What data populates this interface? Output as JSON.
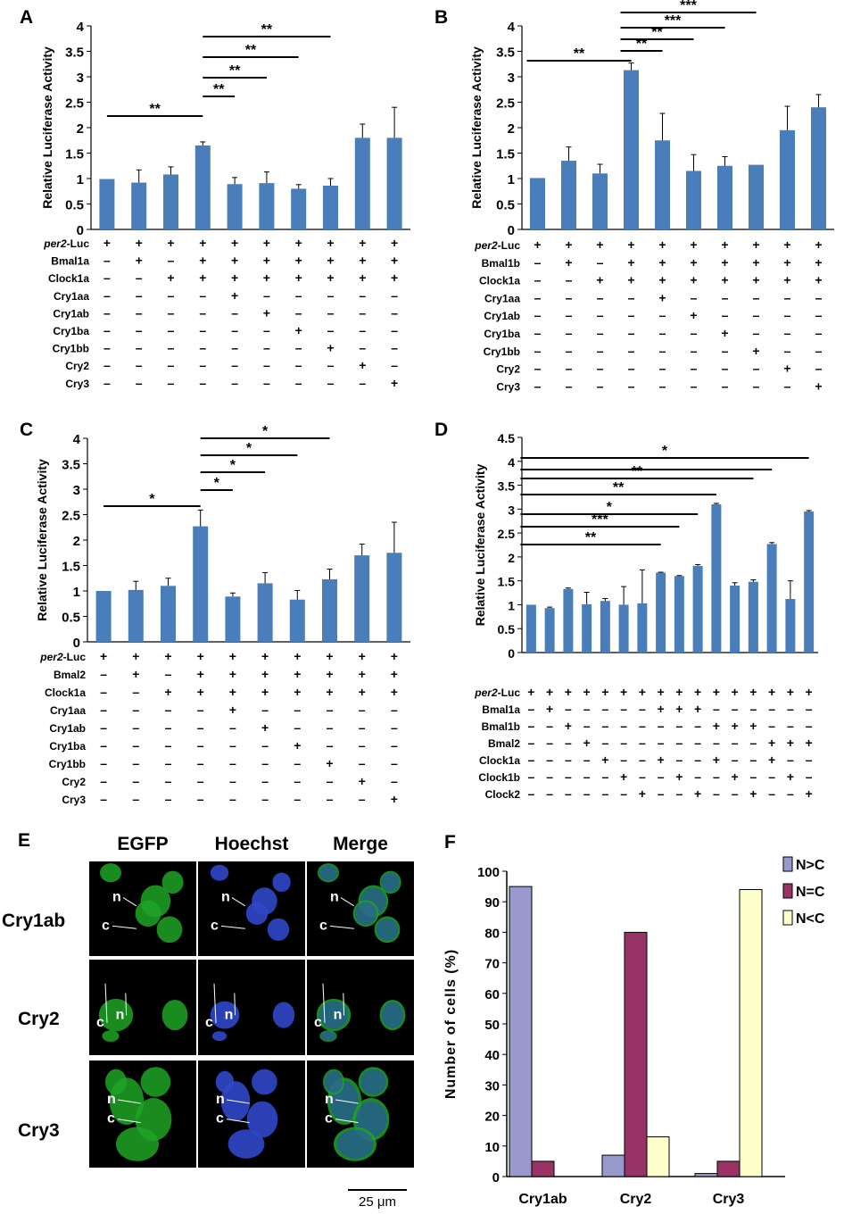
{
  "colors": {
    "bar": "#4a7ebb",
    "n_gt_c": "#9999cc",
    "n_eq_c": "#993366",
    "n_lt_c": "#ffffcc",
    "egfp": "#1fa324",
    "hoechst": "#2f47c8"
  },
  "chart_data": [
    {
      "id": "A",
      "type": "bar",
      "panel_label": "A",
      "ylabel": "Relative  Luciferase Activity",
      "ylim": [
        0,
        4
      ],
      "yticks": [
        "0",
        "0.5",
        "1",
        "1.5",
        "2",
        "2.5",
        "3",
        "3.5",
        "4"
      ],
      "values": [
        0.99,
        0.92,
        1.08,
        1.65,
        0.89,
        0.91,
        0.8,
        0.86,
        1.8,
        1.8
      ],
      "errors": [
        0.0,
        0.25,
        0.15,
        0.07,
        0.13,
        0.22,
        0.08,
        0.14,
        0.27,
        0.6
      ],
      "significance": [
        {
          "from": 0,
          "to": 3,
          "label": "**"
        },
        {
          "from": 3,
          "to": 4,
          "label": "**"
        },
        {
          "from": 3,
          "to": 5,
          "label": "**"
        },
        {
          "from": 3,
          "to": 6,
          "label": "**"
        },
        {
          "from": 3,
          "to": 7,
          "label": "**"
        }
      ],
      "design": [
        {
          "label": "per2-Luc",
          "italic_prefix": "per2",
          "suffix": "-Luc",
          "cells": [
            "+",
            "+",
            "+",
            "+",
            "+",
            "+",
            "+",
            "+",
            "+",
            "+"
          ]
        },
        {
          "label": "Bmal1a",
          "cells": [
            "–",
            "+",
            "–",
            "+",
            "+",
            "+",
            "+",
            "+",
            "+",
            "+"
          ]
        },
        {
          "label": "Clock1a",
          "cells": [
            "–",
            "–",
            "+",
            "+",
            "+",
            "+",
            "+",
            "+",
            "+",
            "+"
          ]
        },
        {
          "label": "Cry1aa",
          "cells": [
            "–",
            "–",
            "–",
            "–",
            "+",
            "–",
            "–",
            "–",
            "–",
            "–"
          ]
        },
        {
          "label": "Cry1ab",
          "cells": [
            "–",
            "–",
            "–",
            "–",
            "–",
            "+",
            "–",
            "–",
            "–",
            "–"
          ]
        },
        {
          "label": "Cry1ba",
          "cells": [
            "–",
            "–",
            "–",
            "–",
            "–",
            "–",
            "+",
            "–",
            "–",
            "–"
          ]
        },
        {
          "label": "Cry1bb",
          "cells": [
            "–",
            "–",
            "–",
            "–",
            "–",
            "–",
            "–",
            "+",
            "–",
            "–"
          ]
        },
        {
          "label": "Cry2",
          "cells": [
            "–",
            "–",
            "–",
            "–",
            "–",
            "–",
            "–",
            "–",
            "+",
            "–"
          ]
        },
        {
          "label": "Cry3",
          "cells": [
            "–",
            "–",
            "–",
            "–",
            "–",
            "–",
            "–",
            "–",
            "–",
            "+"
          ]
        }
      ]
    },
    {
      "id": "B",
      "type": "bar",
      "panel_label": "B",
      "ylabel": "Relative  Luciferase Activity",
      "ylim": [
        0,
        4
      ],
      "yticks": [
        "0",
        "0.5",
        "1",
        "1.5",
        "2",
        "2.5",
        "3",
        "3.5",
        "4"
      ],
      "values": [
        1.01,
        1.35,
        1.1,
        3.13,
        1.75,
        1.15,
        1.25,
        1.27,
        1.95,
        2.4
      ],
      "errors": [
        0.0,
        0.27,
        0.18,
        0.14,
        0.53,
        0.32,
        0.18,
        0.0,
        0.47,
        0.25
      ],
      "significance": [
        {
          "from": 0,
          "to": 3,
          "label": "**"
        },
        {
          "from": 3,
          "to": 4,
          "label": "**"
        },
        {
          "from": 3,
          "to": 5,
          "label": "**"
        },
        {
          "from": 3,
          "to": 6,
          "label": "***"
        },
        {
          "from": 3,
          "to": 7,
          "label": "***"
        }
      ],
      "design": [
        {
          "label": "per2-Luc",
          "italic_prefix": "per2",
          "suffix": "-Luc",
          "cells": [
            "+",
            "+",
            "+",
            "+",
            "+",
            "+",
            "+",
            "+",
            "+",
            "+"
          ]
        },
        {
          "label": "Bmal1b",
          "cells": [
            "–",
            "+",
            "–",
            "+",
            "+",
            "+",
            "+",
            "+",
            "+",
            "+"
          ]
        },
        {
          "label": "Clock1a",
          "cells": [
            "–",
            "–",
            "+",
            "+",
            "+",
            "+",
            "+",
            "+",
            "+",
            "+"
          ]
        },
        {
          "label": "Cry1aa",
          "cells": [
            "–",
            "–",
            "–",
            "–",
            "+",
            "–",
            "–",
            "–",
            "–",
            "–"
          ]
        },
        {
          "label": "Cry1ab",
          "cells": [
            "–",
            "–",
            "–",
            "–",
            "–",
            "+",
            "–",
            "–",
            "–",
            "–"
          ]
        },
        {
          "label": "Cry1ba",
          "cells": [
            "–",
            "–",
            "–",
            "–",
            "–",
            "–",
            "+",
            "–",
            "–",
            "–"
          ]
        },
        {
          "label": "Cry1bb",
          "cells": [
            "–",
            "–",
            "–",
            "–",
            "–",
            "–",
            "–",
            "+",
            "–",
            "–"
          ]
        },
        {
          "label": "Cry2",
          "cells": [
            "–",
            "–",
            "–",
            "–",
            "–",
            "–",
            "–",
            "–",
            "+",
            "–"
          ]
        },
        {
          "label": "Cry3",
          "cells": [
            "–",
            "–",
            "–",
            "–",
            "–",
            "–",
            "–",
            "–",
            "–",
            "+"
          ]
        }
      ]
    },
    {
      "id": "C",
      "type": "bar",
      "panel_label": "C",
      "ylabel": "Relative  Luciferase Activity",
      "ylim": [
        0,
        4
      ],
      "yticks": [
        "0",
        "0.5",
        "1",
        "1.5",
        "2",
        "2.5",
        "3",
        "3.5",
        "4"
      ],
      "values": [
        1.0,
        1.02,
        1.1,
        2.27,
        0.89,
        1.15,
        0.83,
        1.23,
        1.7,
        1.75
      ],
      "errors": [
        0.0,
        0.17,
        0.15,
        0.32,
        0.07,
        0.21,
        0.18,
        0.2,
        0.22,
        0.6
      ],
      "significance": [
        {
          "from": 0,
          "to": 3,
          "label": "*"
        },
        {
          "from": 3,
          "to": 4,
          "label": "*"
        },
        {
          "from": 3,
          "to": 5,
          "label": "*"
        },
        {
          "from": 3,
          "to": 6,
          "label": "*"
        },
        {
          "from": 3,
          "to": 7,
          "label": "*"
        }
      ],
      "design": [
        {
          "label": "per2-Luc",
          "italic_prefix": "per2",
          "suffix": "-Luc",
          "cells": [
            "+",
            "+",
            "+",
            "+",
            "+",
            "+",
            "+",
            "+",
            "+",
            "+"
          ]
        },
        {
          "label": "Bmal2",
          "cells": [
            "–",
            "+",
            "–",
            "+",
            "+",
            "+",
            "+",
            "+",
            "+",
            "+"
          ]
        },
        {
          "label": "Clock1a",
          "cells": [
            "–",
            "–",
            "+",
            "+",
            "+",
            "+",
            "+",
            "+",
            "+",
            "+"
          ]
        },
        {
          "label": "Cry1aa",
          "cells": [
            "–",
            "–",
            "–",
            "–",
            "+",
            "–",
            "–",
            "–",
            "–",
            "–"
          ]
        },
        {
          "label": "Cry1ab",
          "cells": [
            "–",
            "–",
            "–",
            "–",
            "–",
            "+",
            "–",
            "–",
            "–",
            "–"
          ]
        },
        {
          "label": "Cry1ba",
          "cells": [
            "–",
            "–",
            "–",
            "–",
            "–",
            "–",
            "+",
            "–",
            "–",
            "–"
          ]
        },
        {
          "label": "Cry1bb",
          "cells": [
            "–",
            "–",
            "–",
            "–",
            "–",
            "–",
            "–",
            "+",
            "–",
            "–"
          ]
        },
        {
          "label": "Cry2",
          "cells": [
            "–",
            "–",
            "–",
            "–",
            "–",
            "–",
            "–",
            "–",
            "+",
            "–"
          ]
        },
        {
          "label": "Cry3",
          "cells": [
            "–",
            "–",
            "–",
            "–",
            "–",
            "–",
            "–",
            "–",
            "–",
            "+"
          ]
        }
      ]
    },
    {
      "id": "D",
      "type": "bar",
      "panel_label": "D",
      "ylabel": "Relative Luciferase Activity",
      "ylim": [
        0,
        4.5
      ],
      "yticks": [
        "0",
        "0.5",
        "1",
        "1.5",
        "2",
        "2.5",
        "3",
        "3.5",
        "4",
        "4.5"
      ],
      "values": [
        1.0,
        0.93,
        1.33,
        1.01,
        1.08,
        1.0,
        1.03,
        1.67,
        1.6,
        1.81,
        3.1,
        1.4,
        1.48,
        2.27,
        1.12,
        2.95
      ],
      "errors": [
        0.0,
        0.02,
        0.02,
        0.25,
        0.05,
        0.38,
        0.7,
        0.01,
        0.01,
        0.03,
        0.02,
        0.06,
        0.04,
        0.03,
        0.38,
        0.02
      ],
      "significance": [
        {
          "from": 0,
          "to": 7,
          "label": "**"
        },
        {
          "from": 0,
          "to": 8,
          "label": "***"
        },
        {
          "from": 0,
          "to": 9,
          "label": "*"
        },
        {
          "from": 0,
          "to": 10,
          "label": "**"
        },
        {
          "from": 0,
          "to": 12,
          "label": "**"
        },
        {
          "from": 0,
          "to": 13,
          "label": ""
        },
        {
          "from": 0,
          "to": 15,
          "label": "*"
        }
      ],
      "design": [
        {
          "label": "per2-Luc",
          "italic_prefix": "per2",
          "suffix": "-Luc",
          "cells": [
            "+",
            "+",
            "+",
            "+",
            "+",
            "+",
            "+",
            "+",
            "+",
            "+",
            "+",
            "+",
            "+",
            "+",
            "+",
            "+"
          ]
        },
        {
          "label": "Bmal1a",
          "cells": [
            "–",
            "+",
            "–",
            "–",
            "–",
            "–",
            "–",
            "+",
            "+",
            "+",
            "–",
            "–",
            "–",
            "–",
            "–",
            "–"
          ]
        },
        {
          "label": "Bmal1b",
          "cells": [
            "–",
            "–",
            "+",
            "–",
            "–",
            "–",
            "–",
            "–",
            "–",
            "–",
            "+",
            "+",
            "+",
            "–",
            "–",
            "–"
          ]
        },
        {
          "label": "Bmal2",
          "cells": [
            "–",
            "–",
            "–",
            "+",
            "–",
            "–",
            "–",
            "–",
            "–",
            "–",
            "–",
            "–",
            "–",
            "+",
            "+",
            "+"
          ]
        },
        {
          "label": "Clock1a",
          "cells": [
            "–",
            "–",
            "–",
            "–",
            "+",
            "–",
            "–",
            "+",
            "–",
            "–",
            "+",
            "–",
            "–",
            "+",
            "–",
            "–"
          ]
        },
        {
          "label": "Clock1b",
          "cells": [
            "–",
            "–",
            "–",
            "–",
            "–",
            "+",
            "–",
            "–",
            "+",
            "–",
            "–",
            "+",
            "–",
            "–",
            "+",
            "–"
          ]
        },
        {
          "label": "Clock2",
          "cells": [
            "–",
            "–",
            "–",
            "–",
            "–",
            "–",
            "+",
            "–",
            "–",
            "+",
            "–",
            "–",
            "+",
            "–",
            "–",
            "+"
          ]
        }
      ]
    },
    {
      "id": "F",
      "type": "bar",
      "panel_label": "F",
      "ylabel": "Number of cells (%)",
      "ylim": [
        0,
        100
      ],
      "yticks": [
        "0",
        "10",
        "20",
        "30",
        "40",
        "50",
        "60",
        "70",
        "80",
        "90",
        "100"
      ],
      "categories": [
        "Cry1ab",
        "Cry2",
        "Cry3"
      ],
      "series": [
        {
          "name": "N>C",
          "values": [
            95,
            7,
            1
          ]
        },
        {
          "name": "N=C",
          "values": [
            5,
            80,
            5
          ]
        },
        {
          "name": "N<C",
          "values": [
            0,
            13,
            94
          ]
        }
      ],
      "legend_position": "top-right"
    }
  ],
  "panel_e": {
    "panel_label": "E",
    "columns": [
      "EGFP",
      "Hoechst",
      "Merge"
    ],
    "rows": [
      "Cry1ab",
      "Cry2",
      "Cry3"
    ],
    "marker_n": "n",
    "marker_c": "c",
    "scale_bar": "25 μm"
  }
}
